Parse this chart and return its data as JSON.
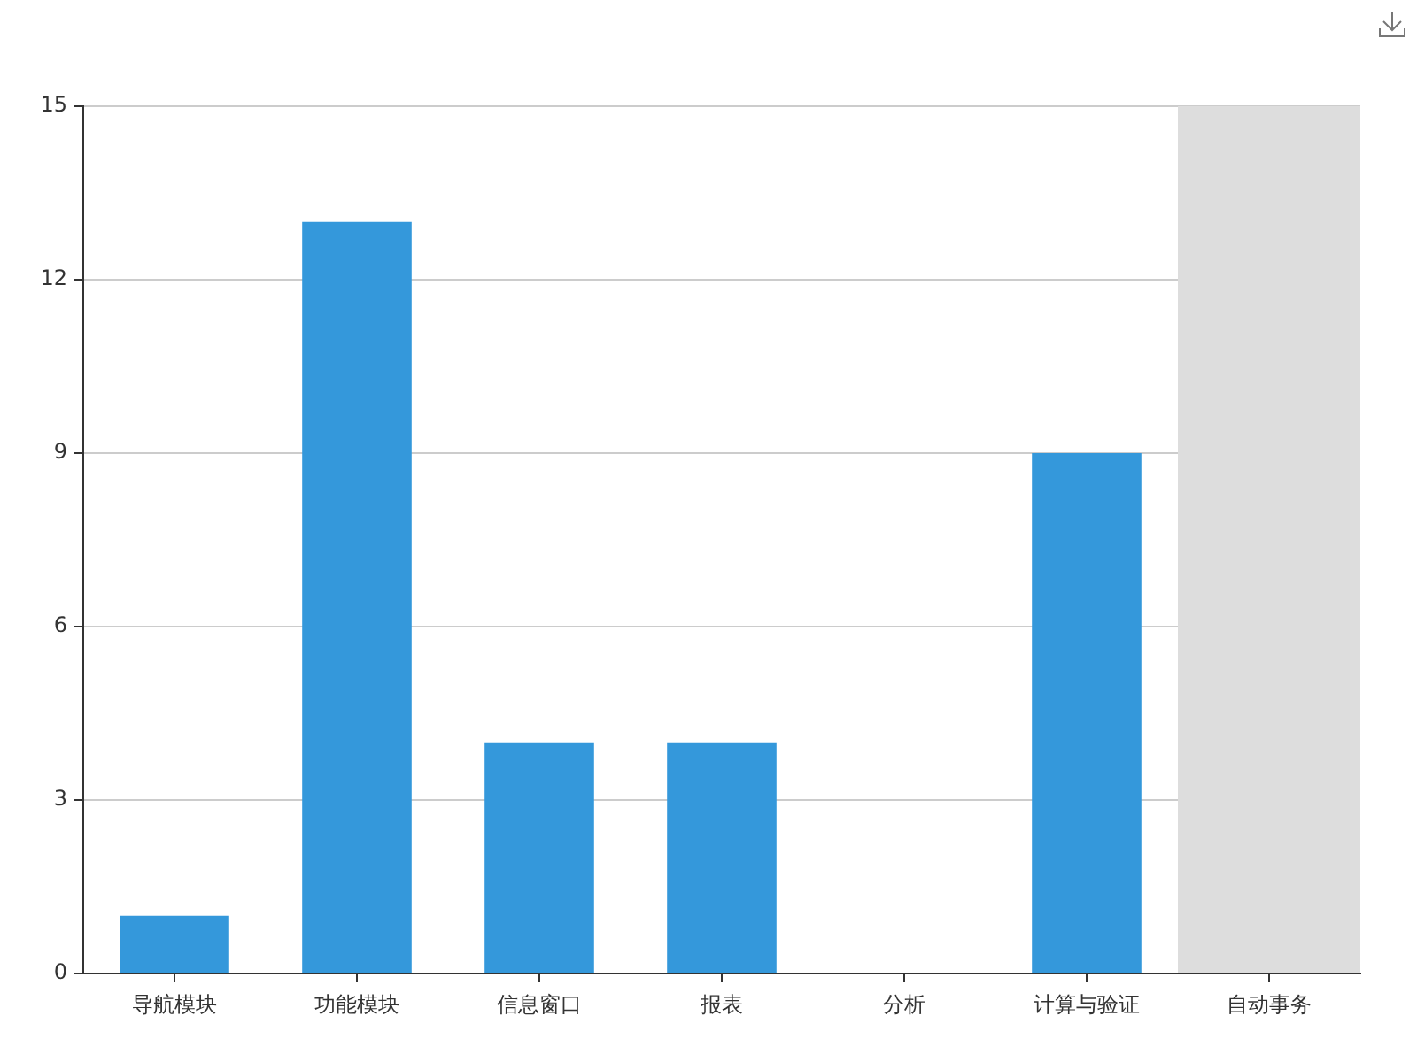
{
  "chart_data": {
    "type": "bar",
    "categories": [
      "导航模块",
      "功能模块",
      "信息窗口",
      "报表",
      "分析",
      "计算与验证",
      "自动事务"
    ],
    "values": [
      1,
      13,
      4,
      4,
      0,
      9,
      0
    ],
    "color": "#3498db",
    "ylim": [
      0,
      15
    ],
    "yticks": [
      0,
      3,
      6,
      9,
      12,
      15
    ],
    "grid": "y",
    "legend": false,
    "bands": [
      {
        "axis": "x",
        "from": "自动事务",
        "to": "自动事务",
        "color": "#dddddd"
      }
    ]
  }
}
